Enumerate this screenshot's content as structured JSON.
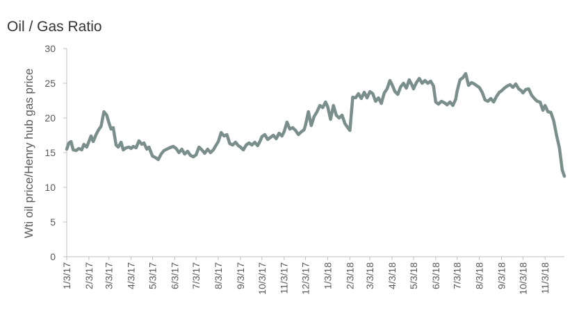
{
  "chart_data": {
    "type": "line",
    "title": "Oil / Gas Ratio",
    "xlabel": "",
    "ylabel": "Wti oil price/Henry hub gas price",
    "ylim": [
      0,
      30
    ],
    "yticks": [
      0,
      5,
      10,
      15,
      20,
      25,
      30
    ],
    "xlim": [
      "2017-01-03",
      "2018-11-30"
    ],
    "x_tick_labels": [
      "1/3/17",
      "2/3/17",
      "3/3/17",
      "4/3/17",
      "5/3/17",
      "6/3/17",
      "7/3/17",
      "8/3/17",
      "9/3/17",
      "10/3/17",
      "11/3/17",
      "12/3/17",
      "1/3/18",
      "2/3/18",
      "3/3/18",
      "4/3/18",
      "5/3/18",
      "6/3/18",
      "7/3/18",
      "8/3/18",
      "9/3/18",
      "10/3/18",
      "11/3/18"
    ],
    "x_tick_dates": [
      "2017-01-03",
      "2017-02-03",
      "2017-03-03",
      "2017-04-03",
      "2017-05-03",
      "2017-06-03",
      "2017-07-03",
      "2017-08-03",
      "2017-09-03",
      "2017-10-03",
      "2017-11-03",
      "2017-12-03",
      "2018-01-03",
      "2018-02-03",
      "2018-03-03",
      "2018-04-03",
      "2018-05-03",
      "2018-06-03",
      "2018-07-03",
      "2018-08-03",
      "2018-09-03",
      "2018-10-03",
      "2018-11-03"
    ],
    "grid": false,
    "series_color": "#7a8f8c",
    "series": [
      {
        "x": [
          "2017-01-03",
          "2017-01-06",
          "2017-01-09",
          "2017-01-12",
          "2017-01-16",
          "2017-01-20",
          "2017-01-24",
          "2017-01-27",
          "2017-01-31",
          "2017-02-03",
          "2017-02-06",
          "2017-02-09",
          "2017-02-13",
          "2017-02-16",
          "2017-02-20",
          "2017-02-24",
          "2017-02-28",
          "2017-03-03",
          "2017-03-06",
          "2017-03-09",
          "2017-03-13",
          "2017-03-16",
          "2017-03-20",
          "2017-03-23",
          "2017-03-27",
          "2017-03-31",
          "2017-04-03",
          "2017-04-06",
          "2017-04-10",
          "2017-04-14",
          "2017-04-18",
          "2017-04-21",
          "2017-04-25",
          "2017-04-28",
          "2017-05-03",
          "2017-05-07",
          "2017-05-11",
          "2017-05-15",
          "2017-05-19",
          "2017-05-23",
          "2017-05-27",
          "2017-06-01",
          "2017-06-05",
          "2017-06-09",
          "2017-06-13",
          "2017-06-17",
          "2017-06-21",
          "2017-06-25",
          "2017-06-29",
          "2017-07-03",
          "2017-07-07",
          "2017-07-11",
          "2017-07-15",
          "2017-07-19",
          "2017-07-23",
          "2017-07-27",
          "2017-07-31",
          "2017-08-03",
          "2017-08-07",
          "2017-08-11",
          "2017-08-15",
          "2017-08-19",
          "2017-08-23",
          "2017-08-27",
          "2017-08-31",
          "2017-09-03",
          "2017-09-07",
          "2017-09-11",
          "2017-09-15",
          "2017-09-19",
          "2017-09-23",
          "2017-09-27",
          "2017-10-01",
          "2017-10-03",
          "2017-10-07",
          "2017-10-11",
          "2017-10-15",
          "2017-10-19",
          "2017-10-23",
          "2017-10-27",
          "2017-10-31",
          "2017-11-03",
          "2017-11-07",
          "2017-11-11",
          "2017-11-15",
          "2017-11-19",
          "2017-11-23",
          "2017-11-27",
          "2017-12-01",
          "2017-12-03",
          "2017-12-07",
          "2017-12-11",
          "2017-12-15",
          "2017-12-19",
          "2017-12-23",
          "2017-12-27",
          "2017-12-31",
          "2018-01-03",
          "2018-01-07",
          "2018-01-11",
          "2018-01-15",
          "2018-01-19",
          "2018-01-23",
          "2018-01-27",
          "2018-01-31",
          "2018-02-03",
          "2018-02-07",
          "2018-02-11",
          "2018-02-15",
          "2018-02-19",
          "2018-02-23",
          "2018-02-27",
          "2018-03-03",
          "2018-03-07",
          "2018-03-11",
          "2018-03-15",
          "2018-03-19",
          "2018-03-23",
          "2018-03-27",
          "2018-03-31",
          "2018-04-03",
          "2018-04-07",
          "2018-04-11",
          "2018-04-15",
          "2018-04-19",
          "2018-04-23",
          "2018-04-27",
          "2018-05-01",
          "2018-05-03",
          "2018-05-07",
          "2018-05-11",
          "2018-05-15",
          "2018-05-19",
          "2018-05-23",
          "2018-05-27",
          "2018-05-31",
          "2018-06-03",
          "2018-06-07",
          "2018-06-11",
          "2018-06-15",
          "2018-06-19",
          "2018-06-23",
          "2018-06-27",
          "2018-07-01",
          "2018-07-03",
          "2018-07-07",
          "2018-07-11",
          "2018-07-15",
          "2018-07-19",
          "2018-07-23",
          "2018-07-27",
          "2018-07-31",
          "2018-08-03",
          "2018-08-07",
          "2018-08-11",
          "2018-08-15",
          "2018-08-19",
          "2018-08-23",
          "2018-08-27",
          "2018-08-31",
          "2018-09-03",
          "2018-09-07",
          "2018-09-11",
          "2018-09-15",
          "2018-09-19",
          "2018-09-23",
          "2018-09-27",
          "2018-10-01",
          "2018-10-03",
          "2018-10-07",
          "2018-10-11",
          "2018-10-15",
          "2018-10-19",
          "2018-10-23",
          "2018-10-27",
          "2018-10-31",
          "2018-11-03",
          "2018-11-07",
          "2018-11-11",
          "2018-11-15",
          "2018-11-19",
          "2018-11-23",
          "2018-11-27",
          "2018-11-30"
        ],
        "y": [
          15.5,
          16.4,
          16.6,
          15.4,
          15.3,
          15.6,
          15.4,
          16.2,
          15.8,
          16.6,
          17.4,
          16.6,
          17.6,
          18.2,
          18.8,
          20.9,
          20.4,
          19.3,
          18.4,
          18.6,
          16.1,
          15.8,
          16.5,
          15.4,
          15.7,
          15.8,
          15.6,
          15.9,
          15.7,
          16.7,
          16.2,
          16.4,
          15.5,
          15.8,
          14.5,
          14.3,
          14.0,
          14.8,
          15.3,
          15.5,
          15.7,
          15.9,
          15.6,
          15.0,
          15.5,
          14.8,
          15.2,
          14.6,
          14.4,
          14.7,
          15.8,
          15.4,
          14.9,
          15.5,
          15.0,
          15.4,
          16.1,
          16.6,
          17.9,
          17.4,
          17.6,
          16.3,
          16.1,
          16.5,
          16.0,
          15.8,
          15.4,
          16.1,
          16.4,
          16.1,
          16.5,
          16.0,
          16.8,
          17.3,
          17.6,
          16.9,
          17.2,
          17.5,
          17.0,
          17.8,
          17.4,
          18.0,
          19.4,
          18.4,
          18.6,
          18.2,
          17.6,
          18.0,
          18.3,
          19.0,
          20.9,
          18.9,
          20.2,
          20.9,
          21.8,
          21.5,
          22.3,
          21.6,
          19.8,
          21.8,
          20.4,
          20.0,
          20.4,
          19.2,
          18.6,
          18.2,
          23.0,
          22.9,
          23.5,
          22.8,
          23.7,
          22.9,
          23.8,
          23.5,
          22.4,
          22.9,
          22.1,
          23.6,
          24.2,
          25.4,
          24.8,
          23.8,
          23.4,
          24.5,
          25.0,
          24.3,
          25.5,
          24.7,
          24.2,
          25.1,
          25.7,
          25.0,
          25.4,
          25.0,
          25.3,
          24.6,
          22.3,
          22.0,
          22.4,
          22.2,
          21.9,
          22.3,
          21.8,
          22.7,
          23.9,
          25.5,
          25.8,
          26.4,
          24.7,
          25.1,
          24.9,
          24.6,
          24.4,
          23.7,
          22.6,
          22.4,
          22.8,
          22.3,
          23.1,
          23.7,
          23.9,
          24.3,
          24.6,
          24.8,
          24.4,
          24.9,
          24.2,
          23.9,
          23.6,
          24.1,
          24.2,
          23.3,
          22.8,
          22.4,
          22.3,
          21.1,
          21.8,
          20.9,
          20.8,
          19.6,
          17.5,
          15.7,
          12.5,
          11.6
        ]
      }
    ]
  }
}
